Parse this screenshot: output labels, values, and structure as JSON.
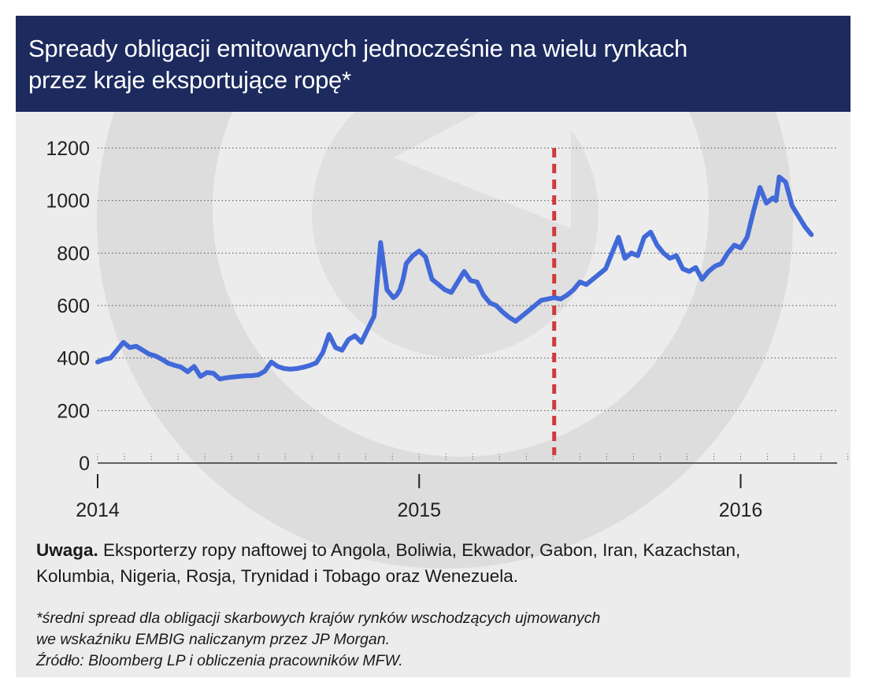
{
  "title_line1": "Spready obligacji emitowanych jednocześnie na wielu rynkach",
  "title_line2": "przez kraje eksportujące ropę*",
  "note_label": "Uwaga.",
  "note_text": " Eksporterzy ropy naftowej to Angola, Boliwia, Ekwador, Gabon, Iran, Kazachstan, Kolumbia, Nigeria, Rosja, Trynidad i Tobago oraz Wenezuela.",
  "footnote_1": "*średni spread dla obligacji skarbowych krajów rynków wschodzących ujmowanych",
  "footnote_2": "we wskaźniku EMBIG naliczanym przez JP Morgan.",
  "source": "Źródło: Bloomberg LP i obliczenia pracowników MFW.",
  "colors": {
    "header_bg": "#1c2a5e",
    "background": "#ececec",
    "line": "#4169d8",
    "marker": "#d0393b"
  },
  "chart_data": {
    "type": "line",
    "title": "Spready obligacji emitowanych jednocześnie na wielu rynkach przez kraje eksportujące ropę*",
    "xlabel": "",
    "ylabel": "",
    "xlim": [
      2014.0,
      2016.3
    ],
    "ylim": [
      0,
      1200
    ],
    "y_ticks": [
      0,
      200,
      400,
      600,
      800,
      1000,
      1200
    ],
    "x_tick_labels": [
      {
        "x": 2014,
        "label": "2014"
      },
      {
        "x": 2015,
        "label": "2015"
      },
      {
        "x": 2016,
        "label": "2016"
      }
    ],
    "grid": "horizontal-dotted",
    "vertical_marker_x": 2015.42,
    "series": [
      {
        "x": [
          2014.0,
          2014.02,
          2014.04,
          2014.06,
          2014.08,
          2014.1,
          2014.12,
          2014.14,
          2014.16,
          2014.18,
          2014.2,
          2014.22,
          2014.24,
          2014.26,
          2014.28,
          2014.3,
          2014.32,
          2014.34,
          2014.36,
          2014.38,
          2014.4,
          2014.42,
          2014.44,
          2014.46,
          2014.48,
          2014.5,
          2014.52,
          2014.54,
          2014.56,
          2014.58,
          2014.6,
          2014.62,
          2014.64,
          2014.66,
          2014.68,
          2014.7,
          2014.72,
          2014.74,
          2014.76,
          2014.78,
          2014.8,
          2014.82,
          2014.84,
          2014.86,
          2014.88,
          2014.9,
          2014.92,
          2014.93,
          2014.94,
          2014.95,
          2014.96,
          2014.98,
          2015.0,
          2015.02,
          2015.04,
          2015.06,
          2015.08,
          2015.1,
          2015.12,
          2015.14,
          2015.16,
          2015.18,
          2015.2,
          2015.22,
          2015.24,
          2015.26,
          2015.28,
          2015.3,
          2015.32,
          2015.34,
          2015.36,
          2015.38,
          2015.4,
          2015.42,
          2015.44,
          2015.46,
          2015.48,
          2015.5,
          2015.52,
          2015.54,
          2015.56,
          2015.58,
          2015.6,
          2015.62,
          2015.64,
          2015.66,
          2015.68,
          2015.7,
          2015.72,
          2015.74,
          2015.76,
          2015.78,
          2015.8,
          2015.82,
          2015.84,
          2015.86,
          2015.88,
          2015.9,
          2015.92,
          2015.94,
          2015.96,
          2015.98,
          2016.0,
          2016.02,
          2016.04,
          2016.06,
          2016.08,
          2016.1,
          2016.11,
          2016.12,
          2016.14,
          2016.16,
          2016.18,
          2016.2,
          2016.22
        ],
        "y": [
          385,
          395,
          400,
          430,
          460,
          440,
          445,
          430,
          415,
          408,
          395,
          380,
          372,
          365,
          348,
          368,
          330,
          345,
          342,
          320,
          325,
          328,
          330,
          332,
          333,
          336,
          350,
          385,
          368,
          360,
          358,
          360,
          365,
          372,
          382,
          420,
          490,
          440,
          430,
          470,
          485,
          460,
          510,
          560,
          840,
          660,
          630,
          640,
          660,
          700,
          760,
          790,
          808,
          785,
          700,
          680,
          660,
          650,
          690,
          730,
          695,
          690,
          640,
          610,
          600,
          575,
          555,
          540,
          560,
          580,
          600,
          620,
          625,
          630,
          625,
          640,
          660,
          690,
          680,
          700,
          720,
          740,
          800,
          860,
          780,
          800,
          790,
          860,
          880,
          830,
          800,
          780,
          790,
          740,
          730,
          745,
          700,
          730,
          750,
          760,
          800,
          830,
          820,
          860,
          960,
          1050,
          990,
          1010,
          1000,
          1090,
          1070,
          980,
          940,
          900,
          870
        ]
      }
    ]
  }
}
